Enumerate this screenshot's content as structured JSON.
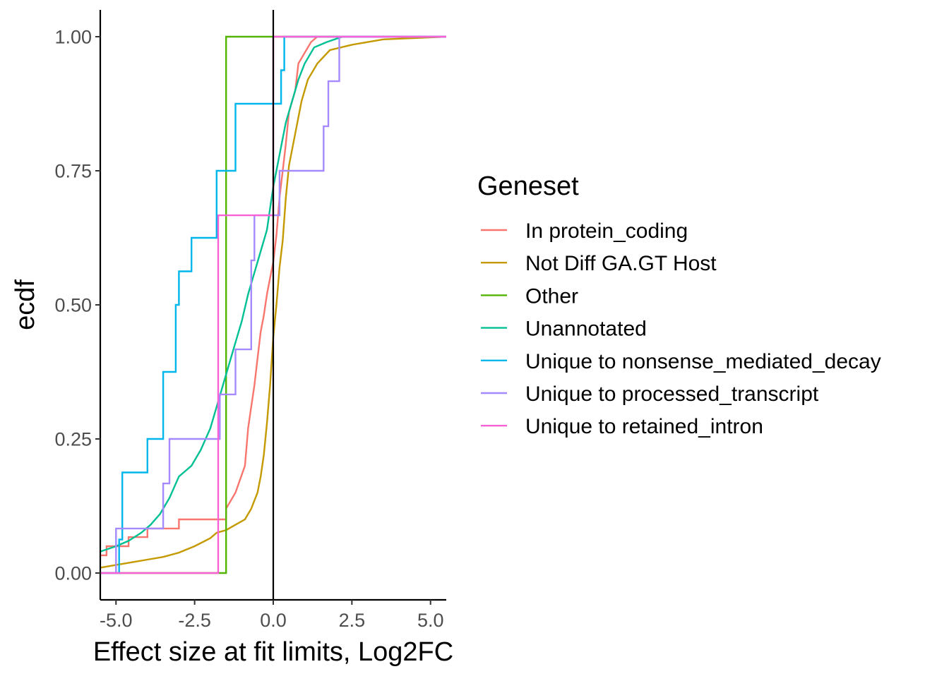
{
  "chart_data": {
    "type": "line",
    "subtype": "ecdf-step",
    "title": "",
    "xlabel": "Effect size at fit limits, Log2FC",
    "ylabel": "ecdf",
    "xlim": [
      -5.5,
      5.5
    ],
    "ylim": [
      -0.05,
      1.05
    ],
    "x_ticks": [
      -5.0,
      -2.5,
      0.0,
      2.5,
      5.0
    ],
    "x_tick_labels": [
      "-5.0",
      "-2.5",
      "0.0",
      "2.5",
      "5.0"
    ],
    "y_ticks": [
      0.0,
      0.25,
      0.5,
      0.75,
      1.0
    ],
    "y_tick_labels": [
      "0.00",
      "0.25",
      "0.50",
      "0.75",
      "1.00"
    ],
    "vline_x": 0.0,
    "grid": false,
    "legend": {
      "title": "Geneset",
      "placement": "right"
    },
    "series": [
      {
        "name": "In protein_coding",
        "color": "#F8766D",
        "points": [
          [
            -5.5,
            0.033
          ],
          [
            -5.3,
            0.033
          ],
          [
            -5.3,
            0.05
          ],
          [
            -4.6,
            0.05
          ],
          [
            -4.6,
            0.067
          ],
          [
            -4.0,
            0.067
          ],
          [
            -4.0,
            0.083
          ],
          [
            -3.0,
            0.083
          ],
          [
            -3.0,
            0.1
          ],
          [
            -1.5,
            0.1
          ],
          [
            -1.5,
            0.12
          ],
          [
            -1.2,
            0.15
          ],
          [
            -0.9,
            0.2
          ],
          [
            -0.8,
            0.27
          ],
          [
            -0.7,
            0.31
          ],
          [
            -0.6,
            0.35
          ],
          [
            -0.5,
            0.4
          ],
          [
            -0.4,
            0.45
          ],
          [
            -0.3,
            0.48
          ],
          [
            -0.2,
            0.52
          ],
          [
            -0.1,
            0.55
          ],
          [
            0.0,
            0.58
          ],
          [
            0.1,
            0.63
          ],
          [
            0.2,
            0.7
          ],
          [
            0.3,
            0.75
          ],
          [
            0.4,
            0.8
          ],
          [
            0.5,
            0.86
          ],
          [
            0.7,
            0.9
          ],
          [
            0.8,
            0.95
          ],
          [
            1.0,
            0.97
          ],
          [
            1.2,
            0.99
          ],
          [
            1.4,
            1.0
          ],
          [
            5.5,
            1.0
          ]
        ]
      },
      {
        "name": "Not Diff GA.GT Host",
        "color": "#C49A00",
        "points": [
          [
            -5.5,
            0.01
          ],
          [
            -5.0,
            0.015
          ],
          [
            -4.5,
            0.02
          ],
          [
            -4.0,
            0.025
          ],
          [
            -3.5,
            0.03
          ],
          [
            -3.0,
            0.038
          ],
          [
            -2.5,
            0.05
          ],
          [
            -2.0,
            0.065
          ],
          [
            -1.8,
            0.075
          ],
          [
            -1.5,
            0.08
          ],
          [
            -1.2,
            0.09
          ],
          [
            -0.9,
            0.1
          ],
          [
            -0.7,
            0.12
          ],
          [
            -0.5,
            0.15
          ],
          [
            -0.4,
            0.18
          ],
          [
            -0.3,
            0.22
          ],
          [
            -0.2,
            0.28
          ],
          [
            -0.1,
            0.35
          ],
          [
            0.0,
            0.44
          ],
          [
            0.1,
            0.5
          ],
          [
            0.2,
            0.57
          ],
          [
            0.3,
            0.62
          ],
          [
            0.4,
            0.7
          ],
          [
            0.5,
            0.76
          ],
          [
            0.7,
            0.82
          ],
          [
            0.9,
            0.88
          ],
          [
            1.1,
            0.92
          ],
          [
            1.4,
            0.95
          ],
          [
            1.8,
            0.975
          ],
          [
            2.5,
            0.985
          ],
          [
            3.5,
            0.995
          ],
          [
            5.5,
            1.0
          ]
        ]
      },
      {
        "name": "Other",
        "color": "#53B400",
        "points": [
          [
            -5.5,
            0.0
          ],
          [
            -1.5,
            0.0
          ],
          [
            -1.5,
            1.0
          ],
          [
            5.5,
            1.0
          ]
        ]
      },
      {
        "name": "Unannotated",
        "color": "#00C094",
        "points": [
          [
            -5.5,
            0.04
          ],
          [
            -5.0,
            0.05
          ],
          [
            -4.6,
            0.06
          ],
          [
            -4.2,
            0.075
          ],
          [
            -3.9,
            0.09
          ],
          [
            -3.6,
            0.11
          ],
          [
            -3.3,
            0.14
          ],
          [
            -3.0,
            0.18
          ],
          [
            -2.6,
            0.2
          ],
          [
            -2.3,
            0.23
          ],
          [
            -2.0,
            0.27
          ],
          [
            -1.8,
            0.31
          ],
          [
            -1.6,
            0.35
          ],
          [
            -1.4,
            0.39
          ],
          [
            -1.2,
            0.43
          ],
          [
            -1.0,
            0.47
          ],
          [
            -0.8,
            0.52
          ],
          [
            -0.6,
            0.56
          ],
          [
            -0.4,
            0.6
          ],
          [
            -0.2,
            0.64
          ],
          [
            -0.1,
            0.68
          ],
          [
            0.0,
            0.72
          ],
          [
            0.2,
            0.78
          ],
          [
            0.4,
            0.84
          ],
          [
            0.6,
            0.88
          ],
          [
            0.8,
            0.92
          ],
          [
            1.0,
            0.95
          ],
          [
            1.3,
            0.98
          ],
          [
            1.7,
            0.99
          ],
          [
            2.2,
            1.0
          ],
          [
            5.5,
            1.0
          ]
        ]
      },
      {
        "name": "Unique to nonsense_mediated_decay",
        "color": "#00B6EB",
        "points": [
          [
            -5.5,
            0.0
          ],
          [
            -4.9,
            0.0
          ],
          [
            -4.9,
            0.0625
          ],
          [
            -4.8,
            0.0625
          ],
          [
            -4.8,
            0.1875
          ],
          [
            -4.0,
            0.1875
          ],
          [
            -4.0,
            0.25
          ],
          [
            -3.5,
            0.25
          ],
          [
            -3.5,
            0.375
          ],
          [
            -3.1,
            0.375
          ],
          [
            -3.1,
            0.5
          ],
          [
            -3.0,
            0.5
          ],
          [
            -3.0,
            0.5625
          ],
          [
            -2.6,
            0.5625
          ],
          [
            -2.6,
            0.625
          ],
          [
            -1.8,
            0.625
          ],
          [
            -1.8,
            0.75
          ],
          [
            -1.2,
            0.75
          ],
          [
            -1.2,
            0.875
          ],
          [
            0.25,
            0.875
          ],
          [
            0.25,
            0.9375
          ],
          [
            0.35,
            0.9375
          ],
          [
            0.35,
            1.0
          ],
          [
            5.5,
            1.0
          ]
        ]
      },
      {
        "name": "Unique to processed_transcript",
        "color": "#A58AFF",
        "points": [
          [
            -5.5,
            0.0
          ],
          [
            -5.0,
            0.0
          ],
          [
            -5.0,
            0.083
          ],
          [
            -3.5,
            0.083
          ],
          [
            -3.5,
            0.167
          ],
          [
            -3.3,
            0.167
          ],
          [
            -3.3,
            0.25
          ],
          [
            -1.7,
            0.25
          ],
          [
            -1.7,
            0.333
          ],
          [
            -1.2,
            0.333
          ],
          [
            -1.2,
            0.417
          ],
          [
            -0.7,
            0.417
          ],
          [
            -0.7,
            0.583
          ],
          [
            -0.6,
            0.583
          ],
          [
            -0.6,
            0.667
          ],
          [
            0.2,
            0.667
          ],
          [
            0.2,
            0.75
          ],
          [
            1.6,
            0.75
          ],
          [
            1.6,
            0.833
          ],
          [
            1.75,
            0.833
          ],
          [
            1.75,
            0.917
          ],
          [
            2.1,
            0.917
          ],
          [
            2.1,
            1.0
          ],
          [
            5.5,
            1.0
          ]
        ]
      },
      {
        "name": "Unique to retained_intron",
        "color": "#FB61D7",
        "points": [
          [
            -5.5,
            0.0
          ],
          [
            -1.75,
            0.0
          ],
          [
            -1.75,
            0.667
          ],
          [
            0.0,
            0.667
          ],
          [
            0.0,
            1.0
          ],
          [
            5.5,
            1.0
          ]
        ]
      }
    ]
  }
}
